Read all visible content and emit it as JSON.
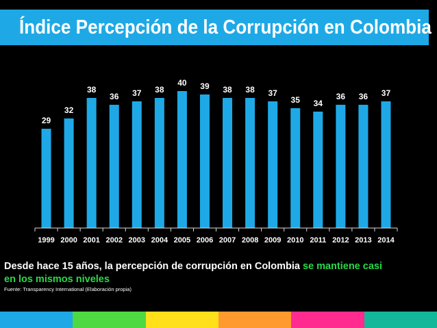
{
  "title": "Índice Percepción de la Corrupción en Colombia",
  "chart_data": {
    "type": "bar",
    "title": "Índice Percepción de la Corrupción en Colombia",
    "categories": [
      "1999",
      "2000",
      "2001",
      "2002",
      "2003",
      "2004",
      "2005",
      "2006",
      "2007",
      "2008",
      "2009",
      "2010",
      "2011",
      "2012",
      "2013",
      "2014"
    ],
    "values": [
      29,
      32,
      38,
      36,
      37,
      38,
      40,
      39,
      38,
      38,
      37,
      35,
      34,
      36,
      36,
      37
    ],
    "xlabel": "",
    "ylabel": "",
    "ylim": [
      0,
      40
    ],
    "grid": false,
    "bar_color": "#1EA9E6"
  },
  "caption": {
    "text_main": "Desde hace 15 años, la percepción de corrupción en Colombia ",
    "text_highlight": "se mantiene casi",
    "text_line2": "en los mismos niveles"
  },
  "source": "Fuente: Transparency International (Elaboración propia)",
  "colors": {
    "title_bg": "#1EA9E6",
    "highlight": "#29D94A",
    "stripes": [
      "#1EA9E6",
      "#4ED842",
      "#FFE01B",
      "#FF9A2E",
      "#FF2B8F",
      "#13B89A"
    ]
  }
}
